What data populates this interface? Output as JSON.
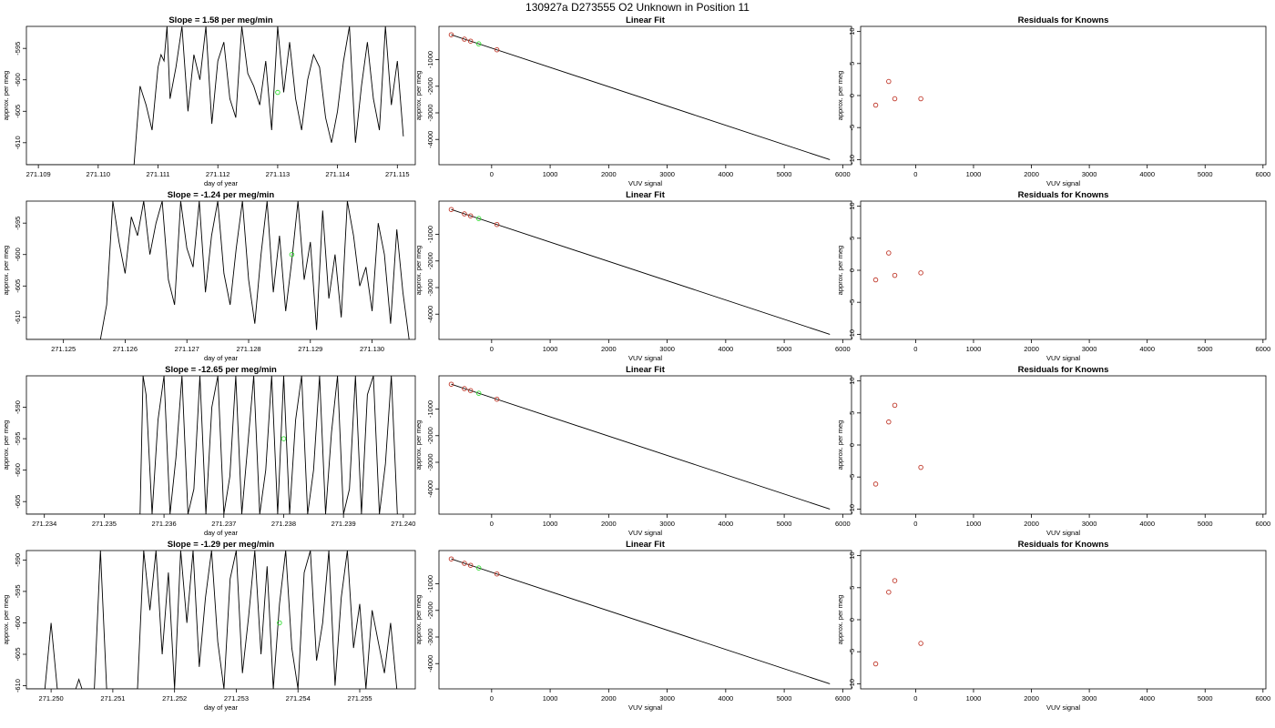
{
  "title": "130927a     D273555   O2 Unknown in Position  11",
  "colors": {
    "line": "#000000",
    "known": "#c0392b",
    "unknown": "#33dd33",
    "frame": "#000000"
  },
  "chart_data": [
    {
      "type": "line",
      "panel": "timeseries",
      "row": 0,
      "title": "Slope =  1.58  per meg/min",
      "xlabel": "day of year",
      "ylabel": "approx. per meg",
      "xticks": [
        "271.109",
        "271.110",
        "271.111",
        "271.112",
        "271.113",
        "271.114",
        "271.115"
      ],
      "yticks": [
        "-595",
        "-600",
        "-605",
        "-610"
      ],
      "xlim": [
        271.1088,
        271.1153
      ],
      "ylim": [
        -613.5,
        -591.5
      ],
      "series": [
        {
          "x": [
            271.1088,
            271.1106,
            271.1107,
            271.1108,
            271.1109,
            271.111,
            271.11105,
            271.1111,
            271.11115,
            271.1112,
            271.1113,
            271.1114,
            271.1115,
            271.1116,
            271.1117,
            271.1118,
            271.1119,
            271.112,
            271.1121,
            271.1122,
            271.1123,
            271.1124,
            271.1125,
            271.1126,
            271.1127,
            271.1128,
            271.1129,
            271.113,
            271.1131,
            271.1132,
            271.1133,
            271.1134,
            271.1135,
            271.1136,
            271.1137,
            271.1138,
            271.1139,
            271.114,
            271.1141,
            271.1142,
            271.1143,
            271.1144,
            271.1145,
            271.1146,
            271.1147,
            271.1148,
            271.1149,
            271.115,
            271.1151
          ],
          "y": [
            -613.5,
            -613.5,
            -601,
            -604,
            -608,
            -598,
            -596,
            -597,
            -591.5,
            -603,
            -598,
            -591.5,
            -605,
            -596,
            -600,
            -591.5,
            -607,
            -597,
            -594,
            -603,
            -606,
            -591.5,
            -599,
            -601,
            -604,
            -597,
            -608,
            -591.5,
            -602,
            -594,
            -603,
            -608,
            -600,
            -596,
            -598,
            -606,
            -610,
            -605,
            -597,
            -591.5,
            -610,
            -601,
            -594,
            -603,
            -608,
            -591.5,
            -604,
            -597,
            -609
          ]
        }
      ],
      "unknown_point": {
        "x": 271.113,
        "y": -602
      }
    },
    {
      "type": "line",
      "panel": "timeseries",
      "row": 1,
      "title": "Slope =  -1.24  per meg/min",
      "xlabel": "day of year",
      "ylabel": "approx. per meg",
      "xticks": [
        "271.125",
        "271.126",
        "271.127",
        "271.128",
        "271.129",
        "271.130"
      ],
      "yticks": [
        "-595",
        "-600",
        "-605",
        "-610"
      ],
      "xlim": [
        271.1244,
        271.1307
      ],
      "ylim": [
        -613.5,
        -591.5
      ],
      "series": [
        {
          "x": [
            271.1244,
            271.1256,
            271.1257,
            271.1258,
            271.1259,
            271.126,
            271.1261,
            271.1262,
            271.1263,
            271.1264,
            271.1265,
            271.1266,
            271.1267,
            271.1268,
            271.1269,
            271.127,
            271.1271,
            271.1272,
            271.1273,
            271.1274,
            271.1275,
            271.1276,
            271.1277,
            271.1278,
            271.1279,
            271.128,
            271.1281,
            271.1282,
            271.1283,
            271.1284,
            271.1285,
            271.1286,
            271.1287,
            271.1288,
            271.1289,
            271.129,
            271.1291,
            271.1292,
            271.1293,
            271.1294,
            271.1295,
            271.1296,
            271.1297,
            271.1298,
            271.1299,
            271.13,
            271.1301,
            271.1302,
            271.1303,
            271.1304,
            271.1305,
            271.1306
          ],
          "y": [
            -613.5,
            -613.5,
            -608,
            -591.5,
            -598,
            -603,
            -594,
            -597,
            -591.5,
            -600,
            -595,
            -591.5,
            -604,
            -608,
            -591.5,
            -599,
            -602,
            -591.5,
            -606,
            -597,
            -591.5,
            -603,
            -608,
            -599,
            -591.5,
            -604,
            -611,
            -600,
            -591.5,
            -606,
            -597,
            -609,
            -601,
            -591.5,
            -604,
            -598,
            -612,
            -593,
            -607,
            -600,
            -610,
            -591.5,
            -597,
            -605,
            -602,
            -609,
            -595,
            -600,
            -611,
            -596,
            -606,
            -613.5
          ]
        }
      ],
      "unknown_point": {
        "x": 271.1287,
        "y": -600
      }
    },
    {
      "type": "line",
      "panel": "timeseries",
      "row": 2,
      "title": "Slope =  -12.65  per meg/min",
      "xlabel": "day of year",
      "ylabel": "approx. per meg",
      "xticks": [
        "271.234",
        "271.235",
        "271.236",
        "271.237",
        "271.238",
        "271.239",
        "271.240"
      ],
      "yticks": [
        "-590",
        "-595",
        "-600",
        "-605"
      ],
      "xlim": [
        271.2337,
        271.2402
      ],
      "ylim": [
        -607,
        -585
      ],
      "series": [
        {
          "x": [
            271.2337,
            271.2356,
            271.23565,
            271.2357,
            271.2358,
            271.2359,
            271.236,
            271.2361,
            271.2362,
            271.2363,
            271.2364,
            271.2365,
            271.2366,
            271.2367,
            271.2368,
            271.2369,
            271.237,
            271.2371,
            271.2372,
            271.2373,
            271.2374,
            271.2375,
            271.2376,
            271.2377,
            271.2378,
            271.2379,
            271.238,
            271.2381,
            271.2382,
            271.2383,
            271.2384,
            271.2385,
            271.2386,
            271.2387,
            271.2388,
            271.2389,
            271.239,
            271.2391,
            271.2392,
            271.2393,
            271.2394,
            271.2395,
            271.2396,
            271.2397,
            271.2398,
            271.2399
          ],
          "y": [
            -607,
            -607,
            -585,
            -588,
            -607,
            -592,
            -585,
            -607,
            -598,
            -585,
            -607,
            -603,
            -585,
            -607,
            -590,
            -585,
            -607,
            -601,
            -585,
            -607,
            -596,
            -585,
            -607,
            -600,
            -585,
            -607,
            -585,
            -607,
            -592,
            -585,
            -607,
            -600,
            -585,
            -607,
            -594,
            -585,
            -607,
            -603,
            -585,
            -607,
            -588,
            -585,
            -607,
            -599,
            -585,
            -607
          ]
        }
      ],
      "unknown_point": {
        "x": 271.238,
        "y": -595
      }
    },
    {
      "type": "line",
      "panel": "timeseries",
      "row": 3,
      "title": "Slope =  -1.29  per meg/min",
      "xlabel": "day of year",
      "ylabel": "approx. per meg",
      "xticks": [
        "271.250",
        "271.251",
        "271.252",
        "271.253",
        "271.254",
        "271.255"
      ],
      "yticks": [
        "-590",
        "-595",
        "-600",
        "-605",
        "-610"
      ],
      "xlim": [
        271.2496,
        271.2559
      ],
      "ylim": [
        -610.5,
        -588.5
      ],
      "series": [
        {
          "x": [
            271.2496,
            271.2499,
            271.25,
            271.2501,
            271.2504,
            271.25045,
            271.2505,
            271.2507,
            271.2508,
            271.2509,
            271.2514,
            271.2515,
            271.2516,
            271.2517,
            271.2518,
            271.2519,
            271.252,
            271.2521,
            271.2522,
            271.2523,
            271.2524,
            271.2525,
            271.2526,
            271.2527,
            271.2528,
            271.2529,
            271.253,
            271.2531,
            271.2532,
            271.2533,
            271.2534,
            271.2535,
            271.2536,
            271.2537,
            271.2538,
            271.2539,
            271.254,
            271.2541,
            271.2542,
            271.2543,
            271.2544,
            271.2545,
            271.2546,
            271.2547,
            271.2548,
            271.2549,
            271.255,
            271.2551,
            271.2552,
            271.2553,
            271.2554,
            271.2555,
            271.2556
          ],
          "y": [
            -610.5,
            -610.5,
            -600,
            -610.5,
            -610.5,
            -609,
            -610.5,
            -610.5,
            -588.5,
            -610.5,
            -610.5,
            -588.5,
            -598,
            -588.5,
            -605,
            -592,
            -610.5,
            -588.5,
            -600,
            -588.5,
            -607,
            -596,
            -588.5,
            -603,
            -610.5,
            -593,
            -588.5,
            -608,
            -599,
            -588.5,
            -605,
            -591,
            -610.5,
            -597,
            -588.5,
            -604,
            -610.5,
            -592,
            -588.5,
            -606,
            -600,
            -588.5,
            -610,
            -596,
            -588.5,
            -604,
            -597,
            -610.5,
            -598,
            -603,
            -608,
            -600,
            -610.5
          ]
        }
      ],
      "unknown_point": {
        "x": 271.2537,
        "y": -600
      }
    },
    {
      "type": "scatter",
      "panel": "linear-fit",
      "row": 0,
      "title": "Linear Fit",
      "xlabel": "VUV signal",
      "ylabel": "approx. per meg",
      "xticks": [
        "0",
        "1000",
        "2000",
        "3000",
        "4000",
        "5000",
        "6000"
      ],
      "yticks": [
        "-1000",
        "-2000",
        "-3000",
        "-4000"
      ],
      "xlim": [
        -900,
        6150
      ],
      "ylim": [
        -4950,
        250
      ],
      "fit_line": {
        "x": [
          -690,
          5780
        ],
        "y": [
          -65,
          -4760
        ]
      },
      "known_points": {
        "x": [
          -690,
          -465,
          -360,
          90
        ],
        "y": [
          -65,
          -230,
          -305,
          -630
        ]
      },
      "unknown_point": {
        "x": -220,
        "y": -405
      }
    },
    {
      "type": "scatter",
      "panel": "linear-fit",
      "row": 1,
      "title": "Linear Fit",
      "xlabel": "VUV signal",
      "ylabel": "approx. per meg",
      "xticks": [
        "0",
        "1000",
        "2000",
        "3000",
        "4000",
        "5000",
        "6000"
      ],
      "yticks": [
        "-1000",
        "-2000",
        "-3000",
        "-4000"
      ],
      "xlim": [
        -900,
        6150
      ],
      "ylim": [
        -4950,
        250
      ],
      "fit_line": {
        "x": [
          -690,
          5780
        ],
        "y": [
          -65,
          -4760
        ]
      },
      "known_points": {
        "x": [
          -690,
          -465,
          -360,
          90
        ],
        "y": [
          -65,
          -230,
          -305,
          -630
        ]
      },
      "unknown_point": {
        "x": -220,
        "y": -405
      }
    },
    {
      "type": "scatter",
      "panel": "linear-fit",
      "row": 2,
      "title": "Linear Fit",
      "xlabel": "VUV signal",
      "ylabel": "approx. per meg",
      "xticks": [
        "0",
        "1000",
        "2000",
        "3000",
        "4000",
        "5000",
        "6000"
      ],
      "yticks": [
        "-1000",
        "-2000",
        "-3000",
        "-4000"
      ],
      "xlim": [
        -900,
        6150
      ],
      "ylim": [
        -4950,
        250
      ],
      "fit_line": {
        "x": [
          -690,
          5780
        ],
        "y": [
          -65,
          -4760
        ]
      },
      "known_points": {
        "x": [
          -690,
          -465,
          -360,
          90
        ],
        "y": [
          -65,
          -230,
          -305,
          -630
        ]
      },
      "unknown_point": {
        "x": -220,
        "y": -405
      }
    },
    {
      "type": "scatter",
      "panel": "linear-fit",
      "row": 3,
      "title": "Linear Fit",
      "xlabel": "VUV signal",
      "ylabel": "approx. per meg",
      "xticks": [
        "0",
        "1000",
        "2000",
        "3000",
        "4000",
        "5000",
        "6000"
      ],
      "yticks": [
        "-1000",
        "-2000",
        "-3000",
        "-4000"
      ],
      "xlim": [
        -900,
        6150
      ],
      "ylim": [
        -4950,
        250
      ],
      "fit_line": {
        "x": [
          -690,
          5780
        ],
        "y": [
          -65,
          -4760
        ]
      },
      "known_points": {
        "x": [
          -690,
          -465,
          -360,
          90
        ],
        "y": [
          -65,
          -230,
          -305,
          -630
        ]
      },
      "unknown_point": {
        "x": -220,
        "y": -405
      }
    },
    {
      "type": "scatter",
      "panel": "residuals",
      "row": 0,
      "title": "Residuals for Knowns",
      "xlabel": "VUV signal",
      "ylabel": "approx. per meg",
      "xticks": [
        "0",
        "1000",
        "2000",
        "3000",
        "4000",
        "5000",
        "6000"
      ],
      "yticks": [
        "10",
        "5",
        "0",
        "-5",
        "-10"
      ],
      "xlim": [
        -950,
        6050
      ],
      "ylim": [
        -10.8,
        10.8
      ],
      "known_points": {
        "x": [
          -690,
          -465,
          -360,
          90
        ],
        "y": [
          -1.5,
          2.2,
          -0.5,
          -0.5
        ]
      }
    },
    {
      "type": "scatter",
      "panel": "residuals",
      "row": 1,
      "title": "Residuals for Knowns",
      "xlabel": "VUV signal",
      "ylabel": "approx. per meg",
      "xticks": [
        "0",
        "1000",
        "2000",
        "3000",
        "4000",
        "5000",
        "6000"
      ],
      "yticks": [
        "10",
        "5",
        "0",
        "-5",
        "-10"
      ],
      "xlim": [
        -950,
        6050
      ],
      "ylim": [
        -10.8,
        10.8
      ],
      "known_points": {
        "x": [
          -690,
          -465,
          -360,
          90
        ],
        "y": [
          -1.5,
          2.7,
          -0.8,
          -0.4
        ]
      }
    },
    {
      "type": "scatter",
      "panel": "residuals",
      "row": 2,
      "title": "Residuals for Knowns",
      "xlabel": "VUV signal",
      "ylabel": "approx. per meg",
      "xticks": [
        "0",
        "1000",
        "2000",
        "3000",
        "4000",
        "5000",
        "6000"
      ],
      "yticks": [
        "10",
        "5",
        "0",
        "-5",
        "-10"
      ],
      "xlim": [
        -950,
        6050
      ],
      "ylim": [
        -10.8,
        10.8
      ],
      "known_points": {
        "x": [
          -690,
          -465,
          -360,
          90
        ],
        "y": [
          -6.1,
          3.6,
          6.2,
          -3.5
        ]
      }
    },
    {
      "type": "scatter",
      "panel": "residuals",
      "row": 3,
      "title": "Residuals for Knowns",
      "xlabel": "VUV signal",
      "ylabel": "approx. per meg",
      "xticks": [
        "0",
        "1000",
        "2000",
        "3000",
        "4000",
        "5000",
        "6000"
      ],
      "yticks": [
        "10",
        "5",
        "0",
        "-5",
        "-10"
      ],
      "xlim": [
        -950,
        6050
      ],
      "ylim": [
        -10.8,
        10.8
      ],
      "known_points": {
        "x": [
          -690,
          -465,
          -360,
          90
        ],
        "y": [
          -6.9,
          4.3,
          6.1,
          -3.7
        ]
      }
    }
  ]
}
